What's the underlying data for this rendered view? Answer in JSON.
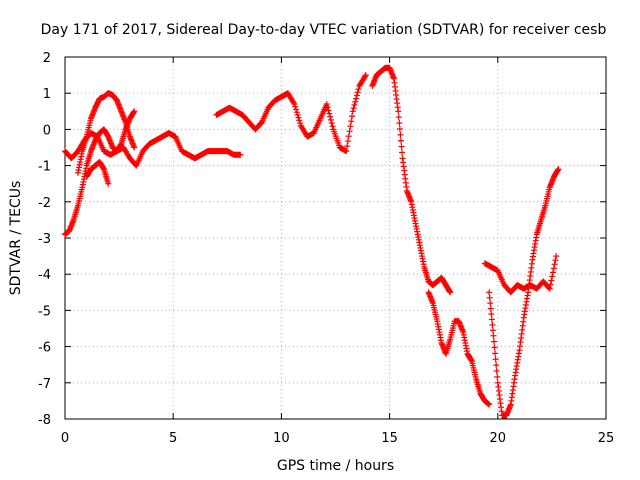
{
  "chart_data": {
    "type": "scatter",
    "title": "Day 171 of 2017, Sidereal Day-to-day VTEC variation (SDTVAR) for receiver cesb",
    "xlabel": "GPS time / hours",
    "ylabel": "SDTVAR / TECUs",
    "xlim": [
      0,
      25
    ],
    "ylim": [
      -8,
      2
    ],
    "xticks": [
      "0",
      "5",
      "10",
      "15",
      "20",
      "25"
    ],
    "yticks": [
      "2",
      "1",
      "0",
      "-1",
      "-2",
      "-3",
      "-4",
      "-5",
      "-6",
      "-7",
      "-8"
    ],
    "xtick_values": [
      0,
      5,
      10,
      15,
      20,
      25
    ],
    "ytick_values": [
      2,
      1,
      0,
      -1,
      -2,
      -3,
      -4,
      -5,
      -6,
      -7,
      -8
    ],
    "grid": true,
    "marker": "+",
    "color": "#ff0000",
    "series": [
      {
        "x": [
          0,
          0.3,
          0.6,
          0.9,
          1.2,
          1.5,
          1.8,
          2.1,
          2.4,
          2.7,
          3.0,
          3.3,
          3.6,
          3.9,
          4.2,
          4.5,
          4.8,
          5.1,
          5.4,
          5.7,
          6.0,
          6.3,
          6.6,
          6.9,
          7.2,
          7.5,
          7.8,
          8.1
        ],
        "y": [
          -0.6,
          -0.8,
          -0.6,
          -0.3,
          -0.1,
          -0.2,
          -0.6,
          -0.7,
          -0.6,
          -0.5,
          -0.8,
          -1.0,
          -0.6,
          -0.4,
          -0.3,
          -0.2,
          -0.1,
          -0.2,
          -0.6,
          -0.7,
          -0.8,
          -0.7,
          -0.6,
          -0.6,
          -0.6,
          -0.6,
          -0.7,
          -0.7
        ]
      },
      {
        "x": [
          0,
          0.2,
          0.4,
          0.6,
          0.8,
          1.0,
          1.2,
          1.4,
          1.6,
          1.8,
          2.0,
          2.2,
          2.4,
          2.6,
          2.8,
          3.0,
          3.2
        ],
        "y": [
          -2.9,
          -2.8,
          -2.5,
          -2.1,
          -1.6,
          -1.0,
          -0.6,
          -0.3,
          -0.1,
          0.0,
          -0.2,
          -0.5,
          -0.6,
          -0.4,
          0.0,
          0.3,
          0.5
        ]
      },
      {
        "x": [
          0.6,
          0.8,
          1.0,
          1.2,
          1.4,
          1.6,
          1.8,
          2.0,
          2.2,
          2.4,
          2.6,
          2.8,
          3.0,
          3.2
        ],
        "y": [
          -1.2,
          -0.6,
          -0.2,
          0.3,
          0.6,
          0.85,
          0.9,
          1.0,
          0.95,
          0.8,
          0.5,
          0.2,
          -0.2,
          -0.5
        ]
      },
      {
        "x": [
          1.0,
          1.2,
          1.4,
          1.6,
          1.8,
          2.0
        ],
        "y": [
          -1.3,
          -1.1,
          -1.0,
          -0.9,
          -1.1,
          -1.5
        ]
      },
      {
        "x": [
          7.0,
          7.3,
          7.6,
          7.9,
          8.2,
          8.5,
          8.8,
          9.1,
          9.4,
          9.7,
          10.0,
          10.3,
          10.6,
          10.9,
          11.2,
          11.5,
          11.8,
          12.1,
          12.4,
          12.7,
          13.0,
          13.3,
          13.6,
          13.9
        ],
        "y": [
          0.4,
          0.5,
          0.6,
          0.5,
          0.4,
          0.2,
          0.0,
          0.2,
          0.6,
          0.8,
          0.9,
          1.0,
          0.7,
          0.1,
          -0.2,
          -0.1,
          0.3,
          0.7,
          0.0,
          -0.5,
          -0.6,
          0.5,
          1.2,
          1.5
        ]
      },
      {
        "x": [
          14.2,
          14.4,
          14.6,
          14.8,
          15.0,
          15.2,
          15.4,
          15.6,
          15.8,
          16.0,
          16.2,
          16.4,
          16.6,
          16.8,
          17.0,
          17.2,
          17.4,
          17.6,
          17.8
        ],
        "y": [
          1.2,
          1.5,
          1.6,
          1.7,
          1.7,
          1.4,
          0.5,
          -0.8,
          -1.7,
          -2.0,
          -2.6,
          -3.2,
          -3.8,
          -4.2,
          -4.3,
          -4.2,
          -4.1,
          -4.3,
          -4.5
        ]
      },
      {
        "x": [
          16.8,
          17.0,
          17.2,
          17.4,
          17.6,
          17.8,
          18.0,
          18.2,
          18.4,
          18.6,
          18.8,
          19.0,
          19.2,
          19.4,
          19.6
        ],
        "y": [
          -4.5,
          -4.8,
          -5.3,
          -5.9,
          -6.2,
          -5.8,
          -5.3,
          -5.3,
          -5.6,
          -6.2,
          -6.4,
          -6.9,
          -7.3,
          -7.5,
          -7.6
        ]
      },
      {
        "x": [
          19.4,
          19.7,
          20.0,
          20.3,
          20.6,
          20.9,
          21.2,
          21.5,
          21.8,
          22.1,
          22.4,
          22.7
        ],
        "y": [
          -3.7,
          -3.8,
          -3.9,
          -4.3,
          -4.5,
          -4.3,
          -4.4,
          -4.3,
          -4.4,
          -4.2,
          -4.4,
          -3.5
        ]
      },
      {
        "x": [
          19.6,
          19.8,
          20.0,
          20.2,
          20.4,
          20.6,
          20.8,
          21.0,
          21.2,
          21.4,
          21.6,
          21.8,
          22.0,
          22.2,
          22.4,
          22.6,
          22.8
        ],
        "y": [
          -4.5,
          -5.7,
          -7.0,
          -7.9,
          -7.9,
          -7.6,
          -6.8,
          -6.1,
          -5.2,
          -4.5,
          -3.6,
          -2.9,
          -2.5,
          -2.1,
          -1.6,
          -1.3,
          -1.1
        ]
      }
    ]
  }
}
